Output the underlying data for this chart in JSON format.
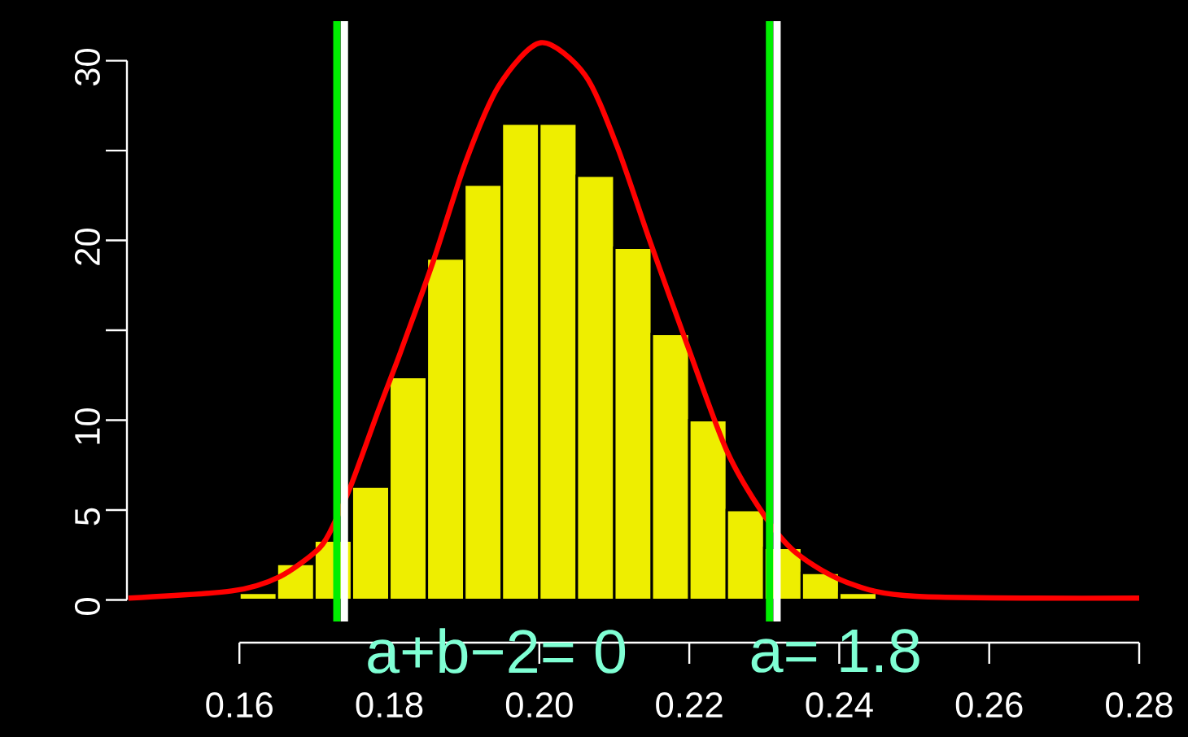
{
  "chart_data": {
    "type": "histogram",
    "bins": [
      0.16,
      0.165,
      0.17,
      0.175,
      0.18,
      0.185,
      0.19,
      0.195,
      0.2,
      0.205,
      0.21,
      0.215,
      0.22,
      0.225,
      0.23,
      0.235,
      0.24,
      0.245
    ],
    "values": [
      0.4,
      2.0,
      3.3,
      6.3,
      12.4,
      19.0,
      23.1,
      26.5,
      26.5,
      23.6,
      19.6,
      14.8,
      10.0,
      5.0,
      2.9,
      1.5,
      0.4
    ],
    "color": "#eeee00",
    "series": [
      {
        "type": "line",
        "color": "#ff0000",
        "x": [
          0.1452,
          0.159,
          0.1654,
          0.1707,
          0.1728,
          0.175,
          0.1785,
          0.1815,
          0.1859,
          0.1902,
          0.1946,
          0.2002,
          0.2061,
          0.2104,
          0.2148,
          0.2198,
          0.225,
          0.23,
          0.2343,
          0.2409,
          0.2502,
          0.28
        ],
        "values": [
          0.1,
          0.5,
          1.3,
          2.9,
          4.4,
          6.5,
          10.5,
          13.8,
          18.9,
          24.4,
          28.6,
          31.0,
          29.2,
          25.2,
          19.9,
          14.1,
          8.3,
          4.7,
          2.6,
          1.0,
          0.2,
          0.1
        ]
      }
    ],
    "ref_lines": [
      {
        "axis": "x",
        "value": 0.173,
        "color": "#00ee00"
      },
      {
        "axis": "x",
        "value": 0.174,
        "color": "#ffffff"
      },
      {
        "axis": "x",
        "value": 0.2307,
        "color": "#00ee00"
      },
      {
        "axis": "x",
        "value": 0.2317,
        "color": "#ffffff"
      }
    ],
    "annotations": [
      "a+b−2= 0",
      "a= 1.8"
    ],
    "xlim": [
      0.145,
      0.28
    ],
    "ylim": [
      -1.2,
      32.2
    ],
    "xticks": [
      0.16,
      0.18,
      {
        "value": 0.2,
        "label": "0.20"
      },
      0.22,
      0.24,
      0.26,
      0.28
    ],
    "yticks": [
      0,
      5,
      10,
      {
        "value": 15,
        "label": null
      },
      20,
      {
        "value": 25,
        "label": null
      },
      30
    ],
    "grid": false
  }
}
